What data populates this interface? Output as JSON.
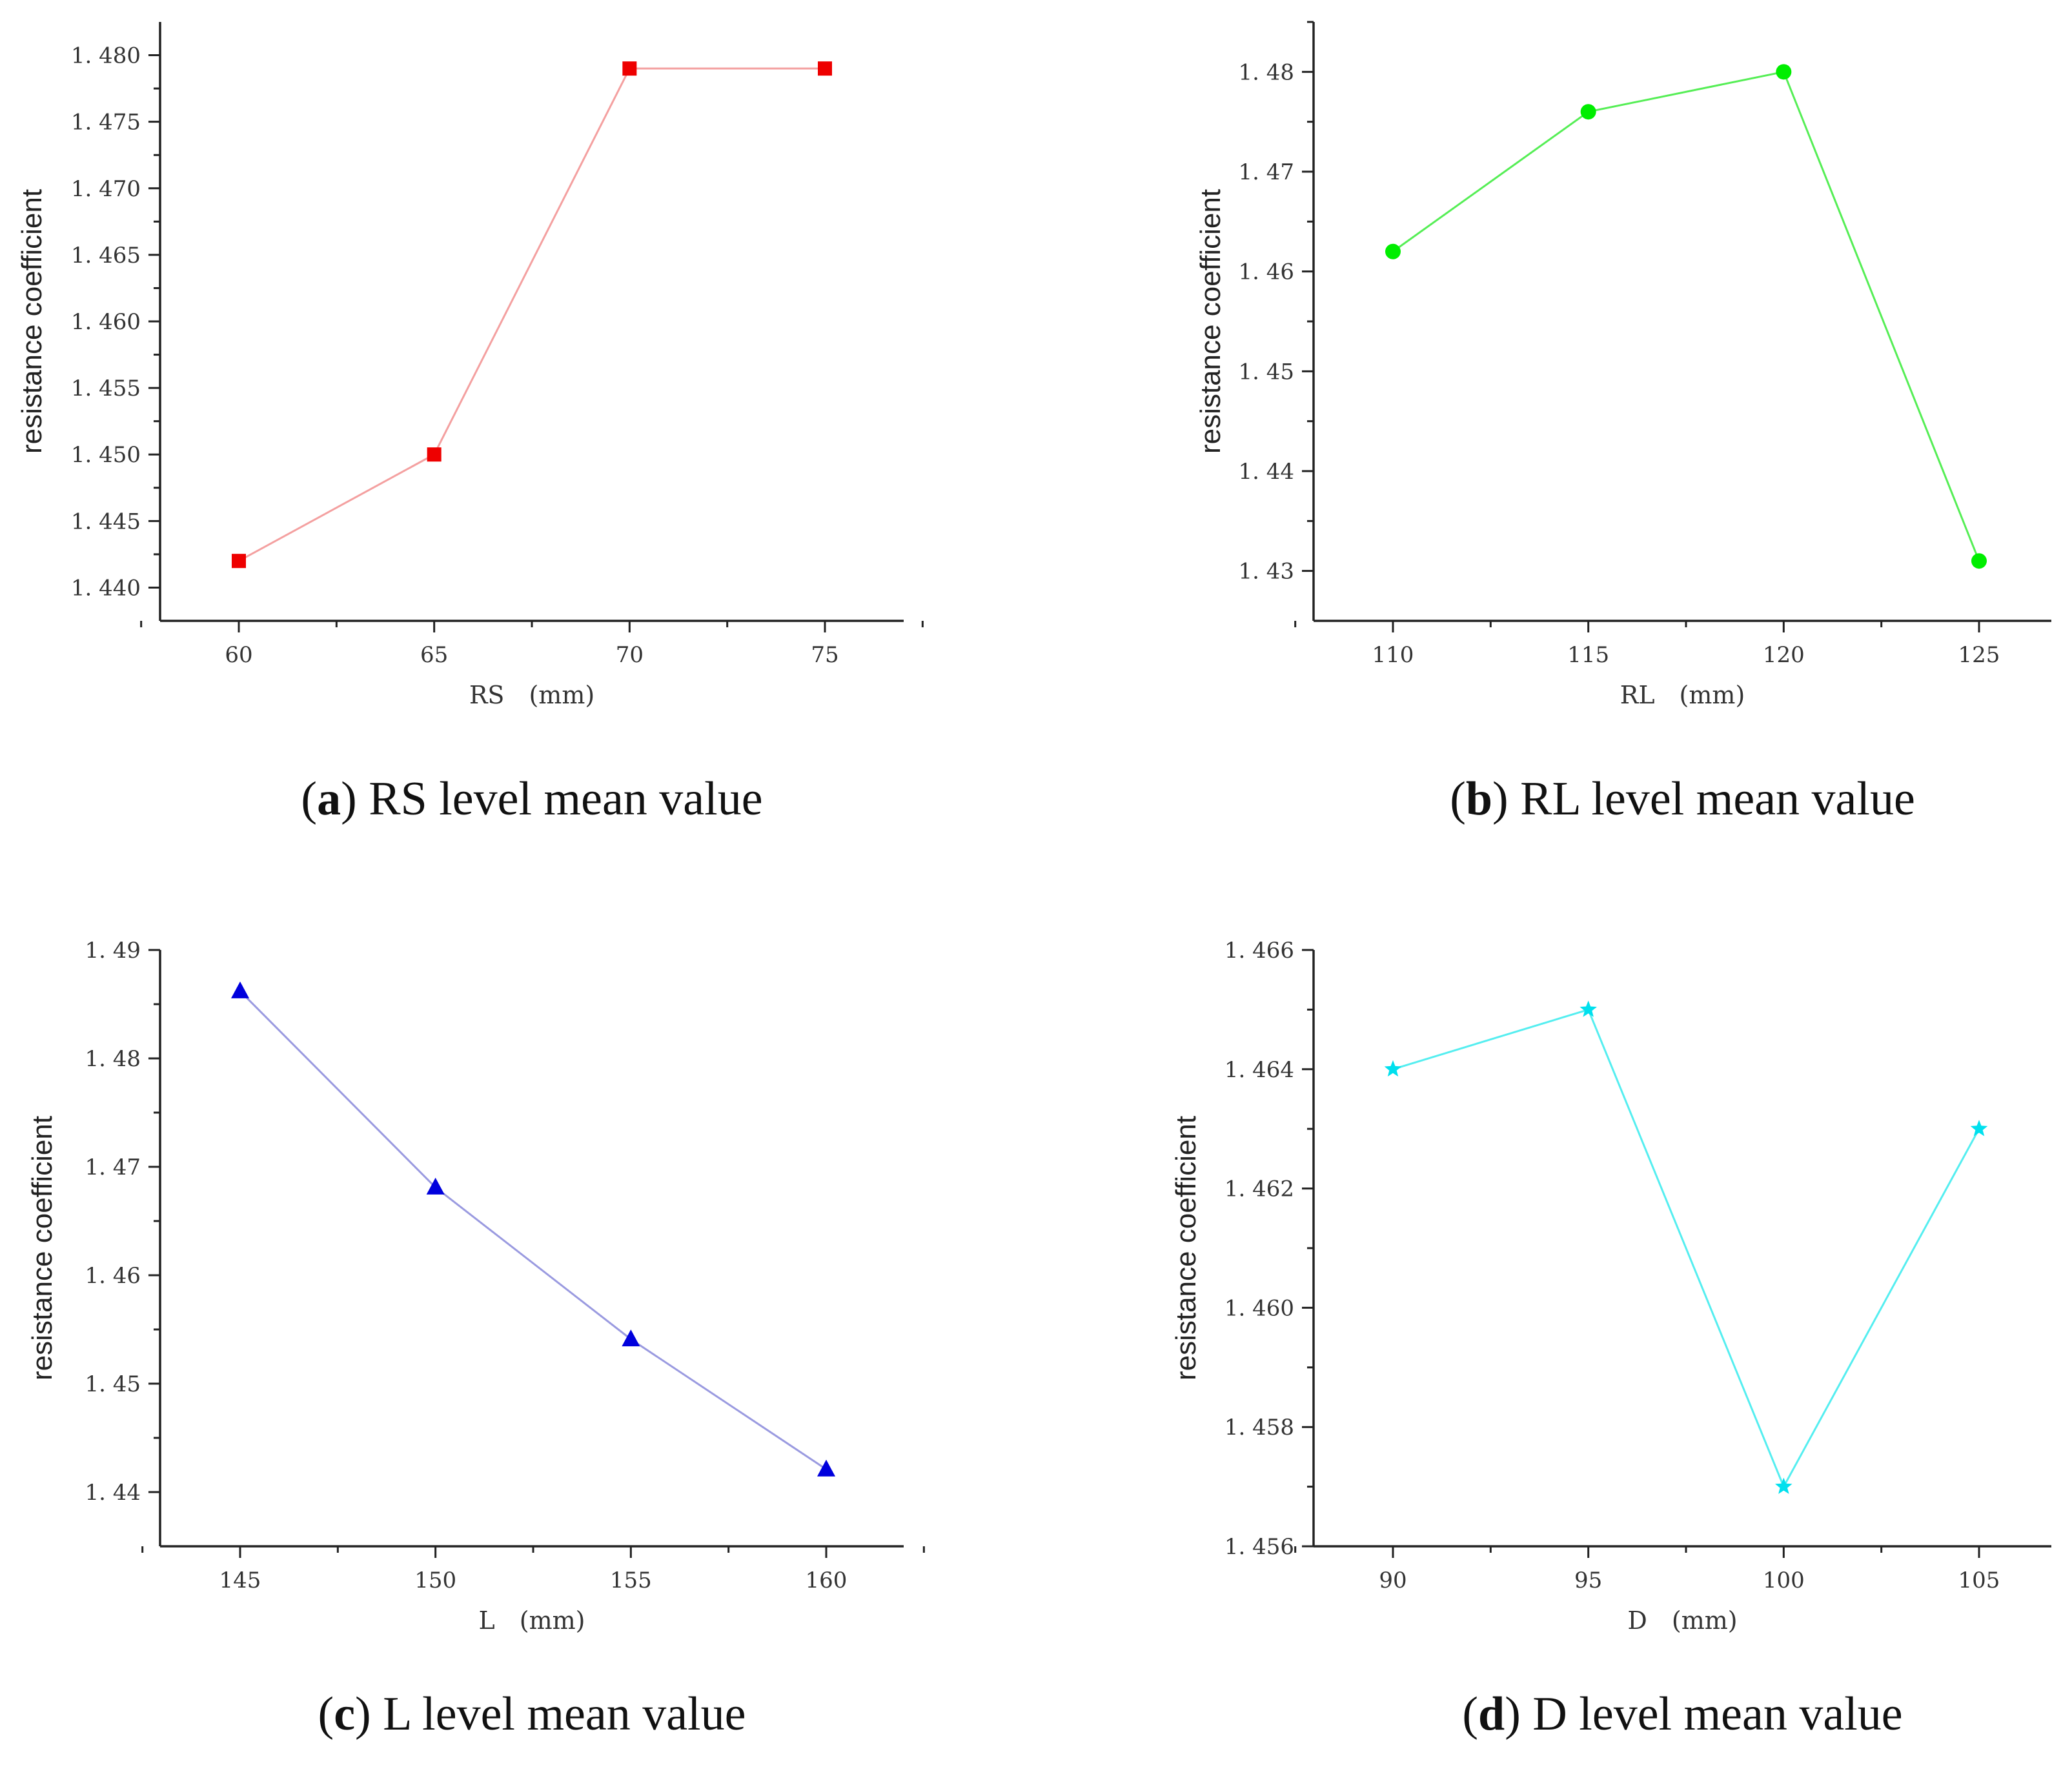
{
  "chart_data": [
    {
      "type": "line",
      "caption": {
        "letter": "a",
        "text": "RS level mean value"
      },
      "categories": [
        "60",
        "65",
        "70",
        "75"
      ],
      "values": [
        1.442,
        1.45,
        1.479,
        1.479
      ],
      "xlabel": "RS　(mm)",
      "ylabel": "resistance coefficient",
      "ylim": [
        1.4375,
        1.4825
      ],
      "yticks": [
        1.44,
        1.445,
        1.45,
        1.455,
        1.46,
        1.465,
        1.47,
        1.475,
        1.48
      ],
      "ytick_labels": [
        "1. 440",
        "1. 445",
        "1. 450",
        "1. 455",
        "1. 460",
        "1. 465",
        "1. 470",
        "1. 475",
        "1. 480"
      ],
      "marker": "square",
      "color": "#ee0000",
      "line_color": "#f4a0a0",
      "grid": false
    },
    {
      "type": "line",
      "caption": {
        "letter": "b",
        "text": "RL level mean value"
      },
      "categories": [
        "110",
        "115",
        "120",
        "125"
      ],
      "values": [
        1.462,
        1.476,
        1.48,
        1.431
      ],
      "xlabel": "RL　(mm)",
      "ylabel": "resistance coefficient",
      "ylim": [
        1.425,
        1.485
      ],
      "yticks": [
        1.43,
        1.44,
        1.45,
        1.46,
        1.47,
        1.48
      ],
      "ytick_labels": [
        "1. 43",
        "1. 44",
        "1. 45",
        "1. 46",
        "1. 47",
        "1. 48"
      ],
      "marker": "circle",
      "color": "#00ee00",
      "line_color": "#55ee55",
      "grid": false
    },
    {
      "type": "line",
      "caption": {
        "letter": "c",
        "text": "L level mean value"
      },
      "categories": [
        "145",
        "150",
        "155",
        "160"
      ],
      "values": [
        1.4862,
        1.4681,
        1.4541,
        1.4421
      ],
      "xlabel": "L　(mm)",
      "ylabel": "resistance coefficient",
      "ylim": [
        1.435,
        1.49
      ],
      "yticks": [
        1.44,
        1.45,
        1.46,
        1.47,
        1.48,
        1.49
      ],
      "ytick_labels": [
        "1. 44",
        "1. 45",
        "1. 46",
        "1. 47",
        "1. 48",
        "1. 49"
      ],
      "marker": "triangle",
      "color": "#0000dd",
      "line_color": "#9a9ae0",
      "grid": false
    },
    {
      "type": "line",
      "caption": {
        "letter": "d",
        "text": "D level mean value"
      },
      "categories": [
        "90",
        "95",
        "100",
        "105"
      ],
      "values": [
        1.464,
        1.465,
        1.457,
        1.463
      ],
      "xlabel": "D　(mm)",
      "ylabel": "resistance coefficient",
      "ylim": [
        1.456,
        1.466
      ],
      "yticks": [
        1.456,
        1.458,
        1.46,
        1.462,
        1.464,
        1.466
      ],
      "ytick_labels": [
        "1. 456",
        "1. 458",
        "1. 460",
        "1. 462",
        "1. 464",
        "1. 466"
      ],
      "marker": "star",
      "color": "#00e0ee",
      "line_color": "#55eef0",
      "grid": false
    }
  ]
}
